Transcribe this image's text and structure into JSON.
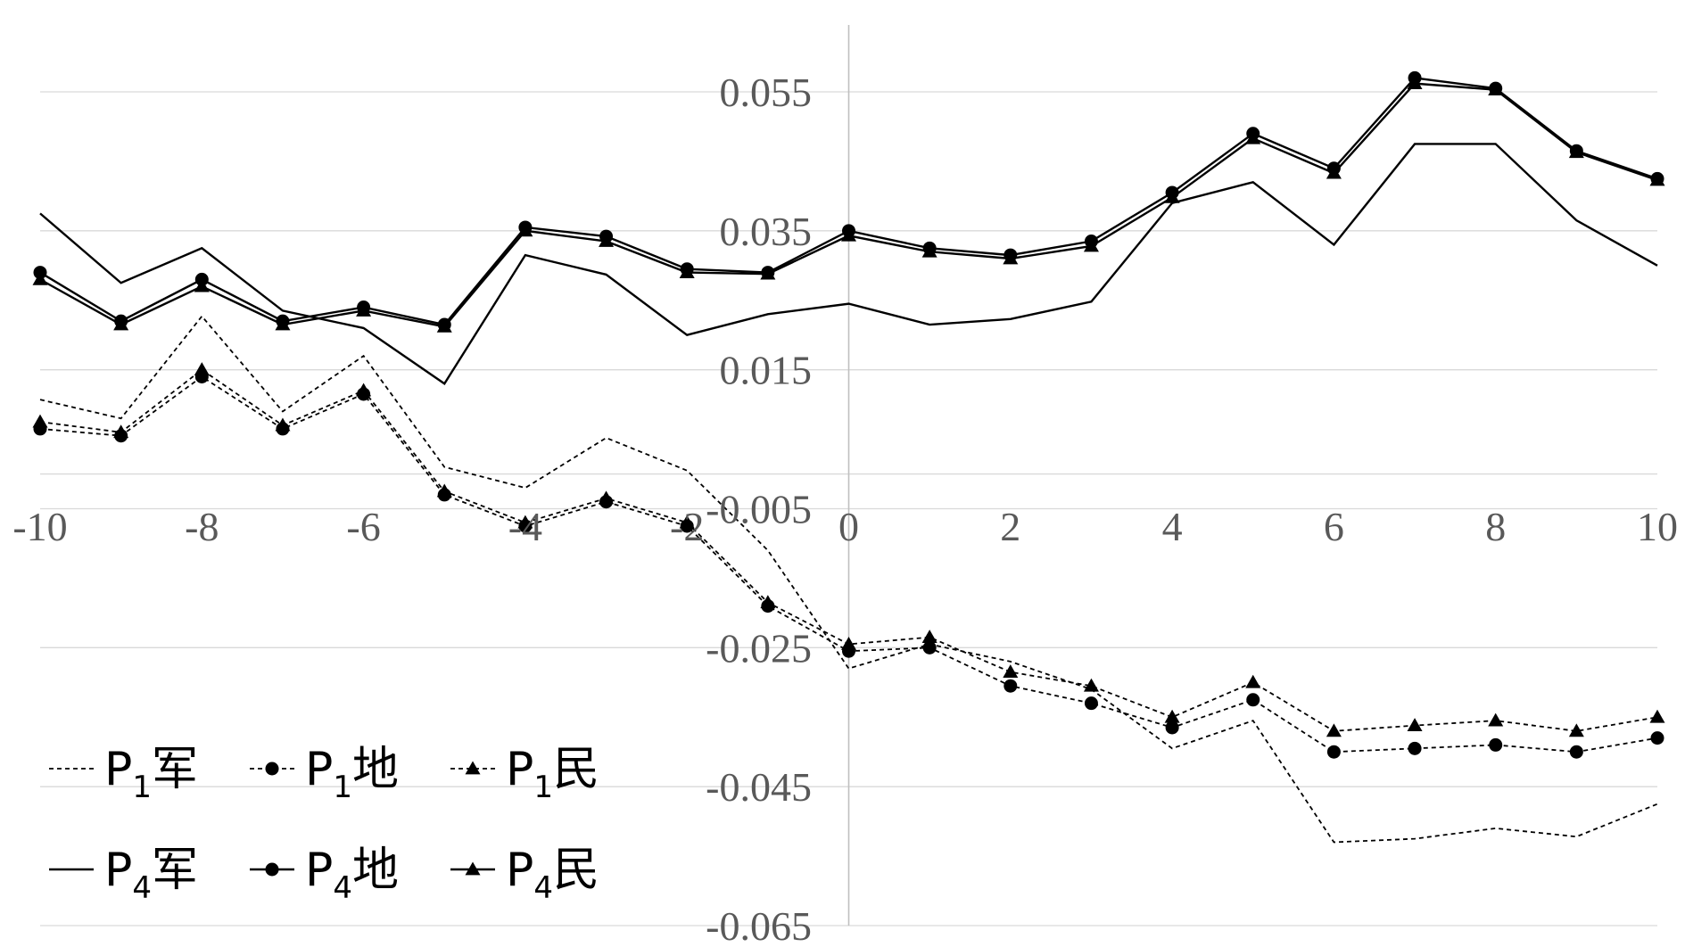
{
  "chart_data": {
    "type": "line",
    "title": "",
    "xlabel": "",
    "ylabel": "",
    "x": [
      -10,
      -9,
      -8,
      -7,
      -6,
      -5,
      -4,
      -3,
      -2,
      -1,
      0,
      1,
      2,
      3,
      4,
      5,
      6,
      7,
      8,
      9,
      10
    ],
    "xlim": [
      -10,
      10
    ],
    "ylim": [
      -0.065,
      0.065
    ],
    "x_ticks": [
      "-10",
      "-8",
      "-6",
      "-4",
      "-2",
      "0",
      "2",
      "4",
      "6",
      "8",
      "10"
    ],
    "x_tick_values": [
      -10,
      -8,
      -6,
      -4,
      -2,
      0,
      2,
      4,
      6,
      8,
      10
    ],
    "y_ticks": [
      "0.055",
      "0.035",
      "0.015",
      "-0.005",
      "-0.025",
      "-0.045",
      "-0.065"
    ],
    "y_tick_values": [
      0.055,
      0.035,
      0.015,
      -0.005,
      -0.025,
      -0.045,
      -0.065
    ],
    "grid": true,
    "legend_position": "bottom-left",
    "series": [
      {
        "legend_main": "P",
        "legend_sub": "1",
        "legend_suffix": "军",
        "style": "dashed",
        "marker": "none",
        "values": [
          0.0107,
          0.008,
          0.0227,
          0.009,
          0.017,
          0.001,
          -0.002,
          0.0052,
          0.0005,
          -0.011,
          -0.028,
          -0.0245,
          -0.027,
          -0.031,
          -0.0395,
          -0.0355,
          -0.053,
          -0.0525,
          -0.051,
          -0.0522,
          -0.0475
        ]
      },
      {
        "legend_main": "P",
        "legend_sub": "1",
        "legend_suffix": "地",
        "style": "dashed",
        "marker": "circle",
        "values": [
          0.0065,
          0.0055,
          0.014,
          0.0065,
          0.0115,
          -0.003,
          -0.0075,
          -0.004,
          -0.0075,
          -0.019,
          -0.0255,
          -0.025,
          -0.0305,
          -0.033,
          -0.0365,
          -0.0325,
          -0.04,
          -0.0395,
          -0.039,
          -0.04,
          -0.038
        ]
      },
      {
        "legend_main": "P",
        "legend_sub": "1",
        "legend_suffix": "民",
        "style": "dashed",
        "marker": "triangle",
        "values": [
          0.0075,
          0.006,
          0.015,
          0.007,
          0.012,
          -0.0025,
          -0.007,
          -0.0035,
          -0.007,
          -0.0185,
          -0.0245,
          -0.0235,
          -0.0285,
          -0.0305,
          -0.035,
          -0.03,
          -0.037,
          -0.0362,
          -0.0355,
          -0.037,
          -0.035
        ]
      },
      {
        "legend_main": "P",
        "legend_sub": "4",
        "legend_suffix": "军",
        "style": "solid",
        "marker": "none",
        "values": [
          0.0375,
          0.0275,
          0.0325,
          0.0235,
          0.021,
          0.013,
          0.0315,
          0.0287,
          0.02,
          0.023,
          0.0245,
          0.0215,
          0.0223,
          0.0248,
          0.039,
          0.042,
          0.033,
          0.0475,
          0.0475,
          0.0365,
          0.03
        ]
      },
      {
        "legend_main": "P",
        "legend_sub": "4",
        "legend_suffix": "地",
        "style": "solid",
        "marker": "circle",
        "values": [
          0.029,
          0.022,
          0.028,
          0.022,
          0.024,
          0.0215,
          0.0355,
          0.0342,
          0.0295,
          0.029,
          0.035,
          0.0325,
          0.0315,
          0.0335,
          0.0405,
          0.049,
          0.044,
          0.057,
          0.0555,
          0.0465,
          0.0425
        ]
      },
      {
        "legend_main": "P",
        "legend_sub": "4",
        "legend_suffix": "民",
        "style": "solid",
        "marker": "triangle",
        "values": [
          0.028,
          0.0215,
          0.027,
          0.0215,
          0.0235,
          0.0212,
          0.035,
          0.0335,
          0.029,
          0.0288,
          0.0343,
          0.032,
          0.031,
          0.0328,
          0.0398,
          0.0483,
          0.0433,
          0.0562,
          0.0553,
          0.0463,
          0.0423
        ]
      }
    ]
  }
}
